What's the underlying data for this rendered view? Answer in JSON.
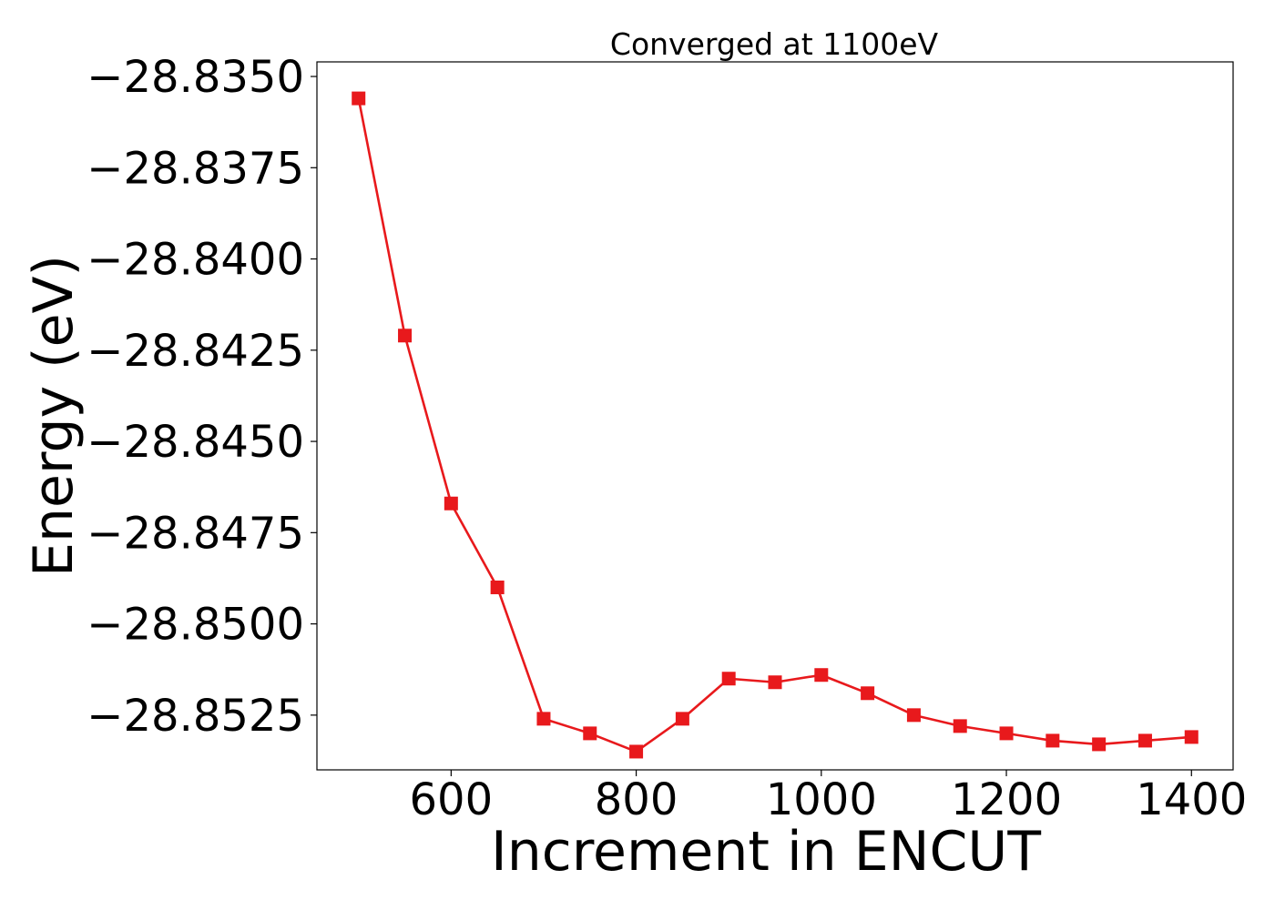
{
  "chart_data": {
    "type": "line",
    "title": "Converged at 1100eV",
    "xlabel": "Increment in ENCUT",
    "ylabel": "Energy (eV)",
    "xlim": [
      455,
      1445
    ],
    "ylim": [
      -28.854,
      -28.8346
    ],
    "xticks": [
      600,
      800,
      1000,
      1200,
      1400
    ],
    "xtick_labels": [
      "600",
      "800",
      "1000",
      "1200",
      "1400"
    ],
    "yticks": [
      -28.835,
      -28.8375,
      -28.84,
      -28.8425,
      -28.845,
      -28.8475,
      -28.85,
      -28.8525
    ],
    "ytick_labels": [
      "−28.8350",
      "−28.8375",
      "−28.8400",
      "−28.8425",
      "−28.8450",
      "−28.8475",
      "−28.8500",
      "−28.8525"
    ],
    "grid": false,
    "legend": "none",
    "series": [
      {
        "color": "#e8191c",
        "marker": "square",
        "x": [
          500,
          550,
          600,
          650,
          700,
          750,
          800,
          850,
          900,
          950,
          1000,
          1050,
          1100,
          1150,
          1200,
          1250,
          1300,
          1350,
          1400
        ],
        "values": [
          -28.8356,
          -28.8421,
          -28.8467,
          -28.849,
          -28.8526,
          -28.853,
          -28.8535,
          -28.8526,
          -28.8515,
          -28.8516,
          -28.8514,
          -28.8519,
          -28.8525,
          -28.8528,
          -28.853,
          -28.8532,
          -28.8533,
          -28.8532,
          -28.8531
        ]
      }
    ]
  }
}
